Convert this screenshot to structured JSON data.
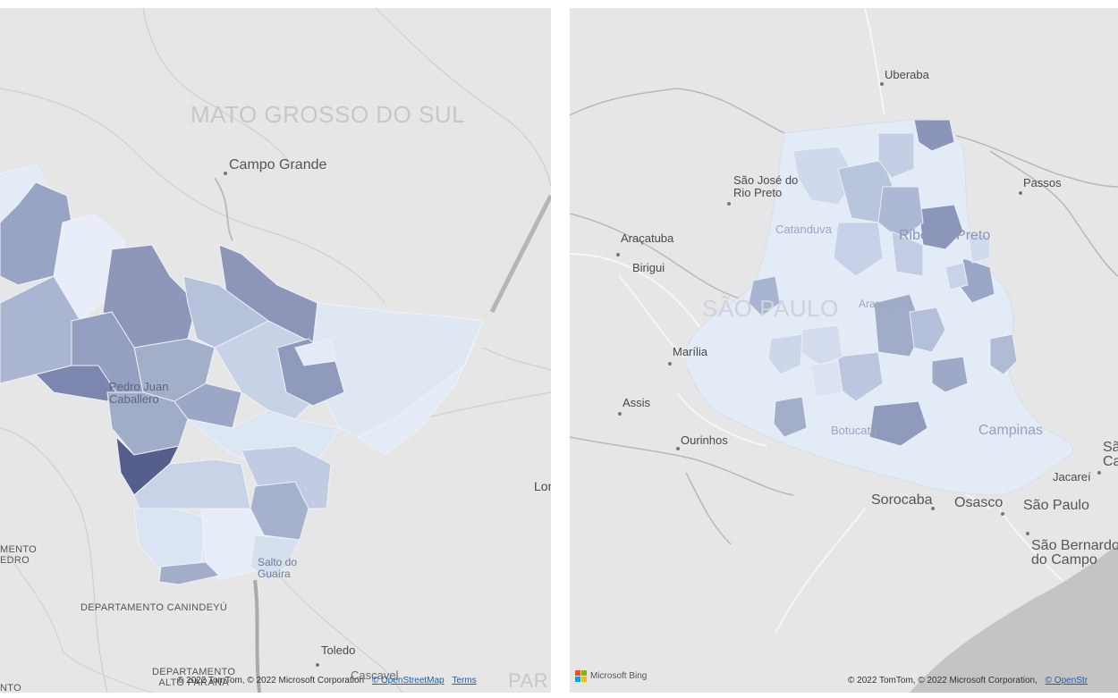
{
  "left_map": {
    "region_label": "MATO GROSSO DO SUL",
    "cities": [
      "Campo Grande",
      "Toledo",
      "Cascavel"
    ],
    "city_pedro": "Pedro Juan\nCaballero",
    "city_salto": "Salto do\nGuaíra",
    "city_lon": "Lon",
    "dept_canindeyu": "DEPARTAMENTO CANINDEYÚ",
    "dept_alto_parana": "DEPARTAMENTO\nALTO PARANÁ",
    "dept_amambay_cut": "MENTO\nEDRO",
    "par_cut": "PAR",
    "into_cut": "NTO",
    "copyright": "© 2022 TomTom, © 2022 Microsoft Corporation",
    "osm_link": "© OpenStreetMap",
    "terms_link": "Terms"
  },
  "right_map": {
    "region_label": "SÃO PAULO",
    "cities": {
      "uberaba": "Uberaba",
      "sao_jose": "São José do\nRio Preto",
      "passos": "Passos",
      "catanduva": "Catanduva",
      "ribeirao": "Ribeirão Preto",
      "aracatuba": "Araçatuba",
      "birigui": "Birigui",
      "araraquara": "Araraquara",
      "marilia": "Marília",
      "assis": "Assis",
      "botucatu": "Botucatu",
      "campinas": "Campinas",
      "ourinhos": "Ourinhos",
      "sorocaba": "Sorocaba",
      "osasco": "Osasco",
      "sao_paulo": "São Paulo",
      "jacarei": "Jacareí",
      "sao_bernardo": "São Bernardo\ndo Campo",
      "sao_cut": "Sã\nCa"
    },
    "bing_label": "Microsoft Bing",
    "copyright": "© 2022 TomTom, © 2022 Microsoft Corporation,",
    "osm_link": "© OpenStr"
  },
  "colors": {
    "map_bg": "#e6e6e6",
    "choropleth_light": "#dbe5f3",
    "choropleth_dark": "#5a6290",
    "link": "#1a5cb4"
  }
}
